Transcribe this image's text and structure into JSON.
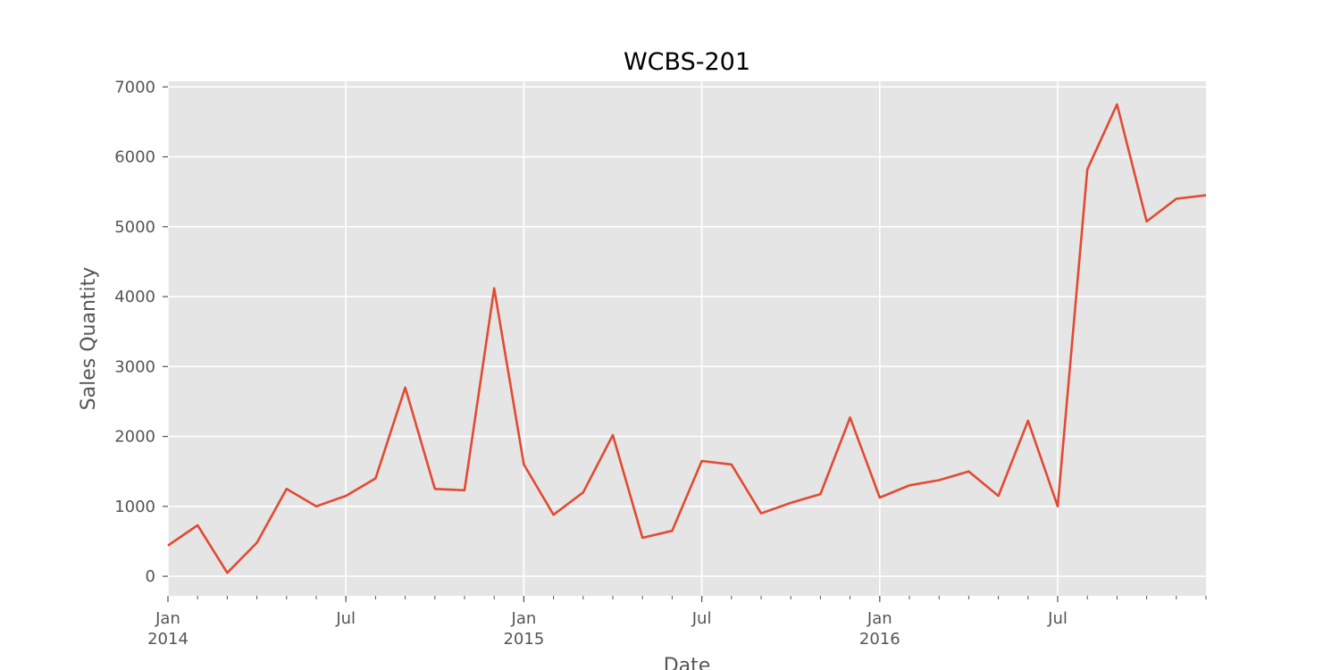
{
  "chart_data": {
    "type": "line",
    "title": "WCBS-201",
    "xlabel": "Date",
    "ylabel": "Sales Quantity",
    "xlim": [
      "2014-01",
      "2016-12"
    ],
    "ylim": [
      -280,
      7080
    ],
    "grid": true,
    "x_ticks": [
      {
        "date": "2014-01",
        "line1": "Jan",
        "line2": "2014"
      },
      {
        "date": "2014-07",
        "line1": "Jul",
        "line2": ""
      },
      {
        "date": "2015-01",
        "line1": "Jan",
        "line2": "2015"
      },
      {
        "date": "2015-07",
        "line1": "Jul",
        "line2": ""
      },
      {
        "date": "2016-01",
        "line1": "Jan",
        "line2": "2016"
      },
      {
        "date": "2016-07",
        "line1": "Jul",
        "line2": ""
      }
    ],
    "y_ticks": [
      0,
      1000,
      2000,
      3000,
      4000,
      5000,
      6000,
      7000
    ],
    "series": [
      {
        "color": "#e24a33",
        "x": [
          "2014-01",
          "2014-02",
          "2014-03",
          "2014-04",
          "2014-05",
          "2014-06",
          "2014-07",
          "2014-08",
          "2014-09",
          "2014-10",
          "2014-11",
          "2014-12",
          "2015-01",
          "2015-02",
          "2015-03",
          "2015-04",
          "2015-05",
          "2015-06",
          "2015-07",
          "2015-08",
          "2015-09",
          "2015-10",
          "2015-11",
          "2015-12",
          "2016-01",
          "2016-02",
          "2016-03",
          "2016-04",
          "2016-05",
          "2016-06",
          "2016-07",
          "2016-08",
          "2016-09",
          "2016-10",
          "2016-11",
          "2016-12"
        ],
        "values": [
          440,
          730,
          50,
          480,
          1250,
          1000,
          1150,
          1400,
          2700,
          1250,
          1230,
          4120,
          1600,
          880,
          1200,
          2020,
          550,
          650,
          1650,
          1600,
          900,
          1050,
          1175,
          2270,
          1125,
          1300,
          1375,
          1500,
          1150,
          2225,
          1000,
          5820,
          6750,
          5075,
          5400,
          5450
        ]
      }
    ]
  }
}
